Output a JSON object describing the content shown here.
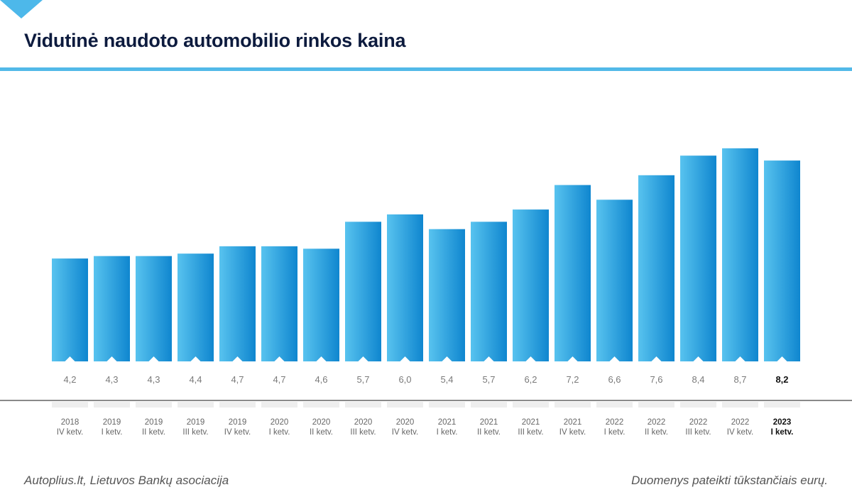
{
  "title": "Vidutinė naudoto automobilio rinkos kaina",
  "footer": {
    "source": "Autoplius.lt, Lietuvos Bankų asociacija",
    "note": "Duomenys pateikti tūkstančiais eurų."
  },
  "colors": {
    "bar_light": "#58c3ef",
    "bar_dark": "#0f86cf",
    "accent": "#52b9e8",
    "title": "#0d1b3e"
  },
  "chart_data": {
    "type": "bar",
    "title": "Vidutinė naudoto automobilio rinkos kaina",
    "xlabel": "",
    "ylabel": "",
    "grid": false,
    "ylim": [
      0,
      9.5
    ],
    "categories": [
      [
        "2018",
        "IV ketv."
      ],
      [
        "2019",
        "I ketv."
      ],
      [
        "2019",
        "II ketv."
      ],
      [
        "2019",
        "III ketv."
      ],
      [
        "2019",
        "IV ketv."
      ],
      [
        "2020",
        "I ketv."
      ],
      [
        "2020",
        "II ketv."
      ],
      [
        "2020",
        "III ketv."
      ],
      [
        "2020",
        "IV ketv."
      ],
      [
        "2021",
        "I ketv."
      ],
      [
        "2021",
        "II ketv."
      ],
      [
        "2021",
        "III ketv."
      ],
      [
        "2021",
        "IV ketv."
      ],
      [
        "2022",
        "I ketv."
      ],
      [
        "2022",
        "II ketv."
      ],
      [
        "2022",
        "III ketv."
      ],
      [
        "2022",
        "IV ketv."
      ],
      [
        "2023",
        "I ketv."
      ]
    ],
    "values": [
      4.2,
      4.3,
      4.3,
      4.4,
      4.7,
      4.7,
      4.6,
      5.7,
      6.0,
      5.4,
      5.7,
      6.2,
      7.2,
      6.6,
      7.6,
      8.4,
      8.7,
      8.2
    ],
    "value_labels": [
      "4,2",
      "4,3",
      "4,3",
      "4,4",
      "4,7",
      "4,7",
      "4,6",
      "5,7",
      "6,0",
      "5,4",
      "5,7",
      "6,2",
      "7,2",
      "6,6",
      "7,6",
      "8,4",
      "8,7",
      "8,2"
    ],
    "highlight_last": true
  }
}
